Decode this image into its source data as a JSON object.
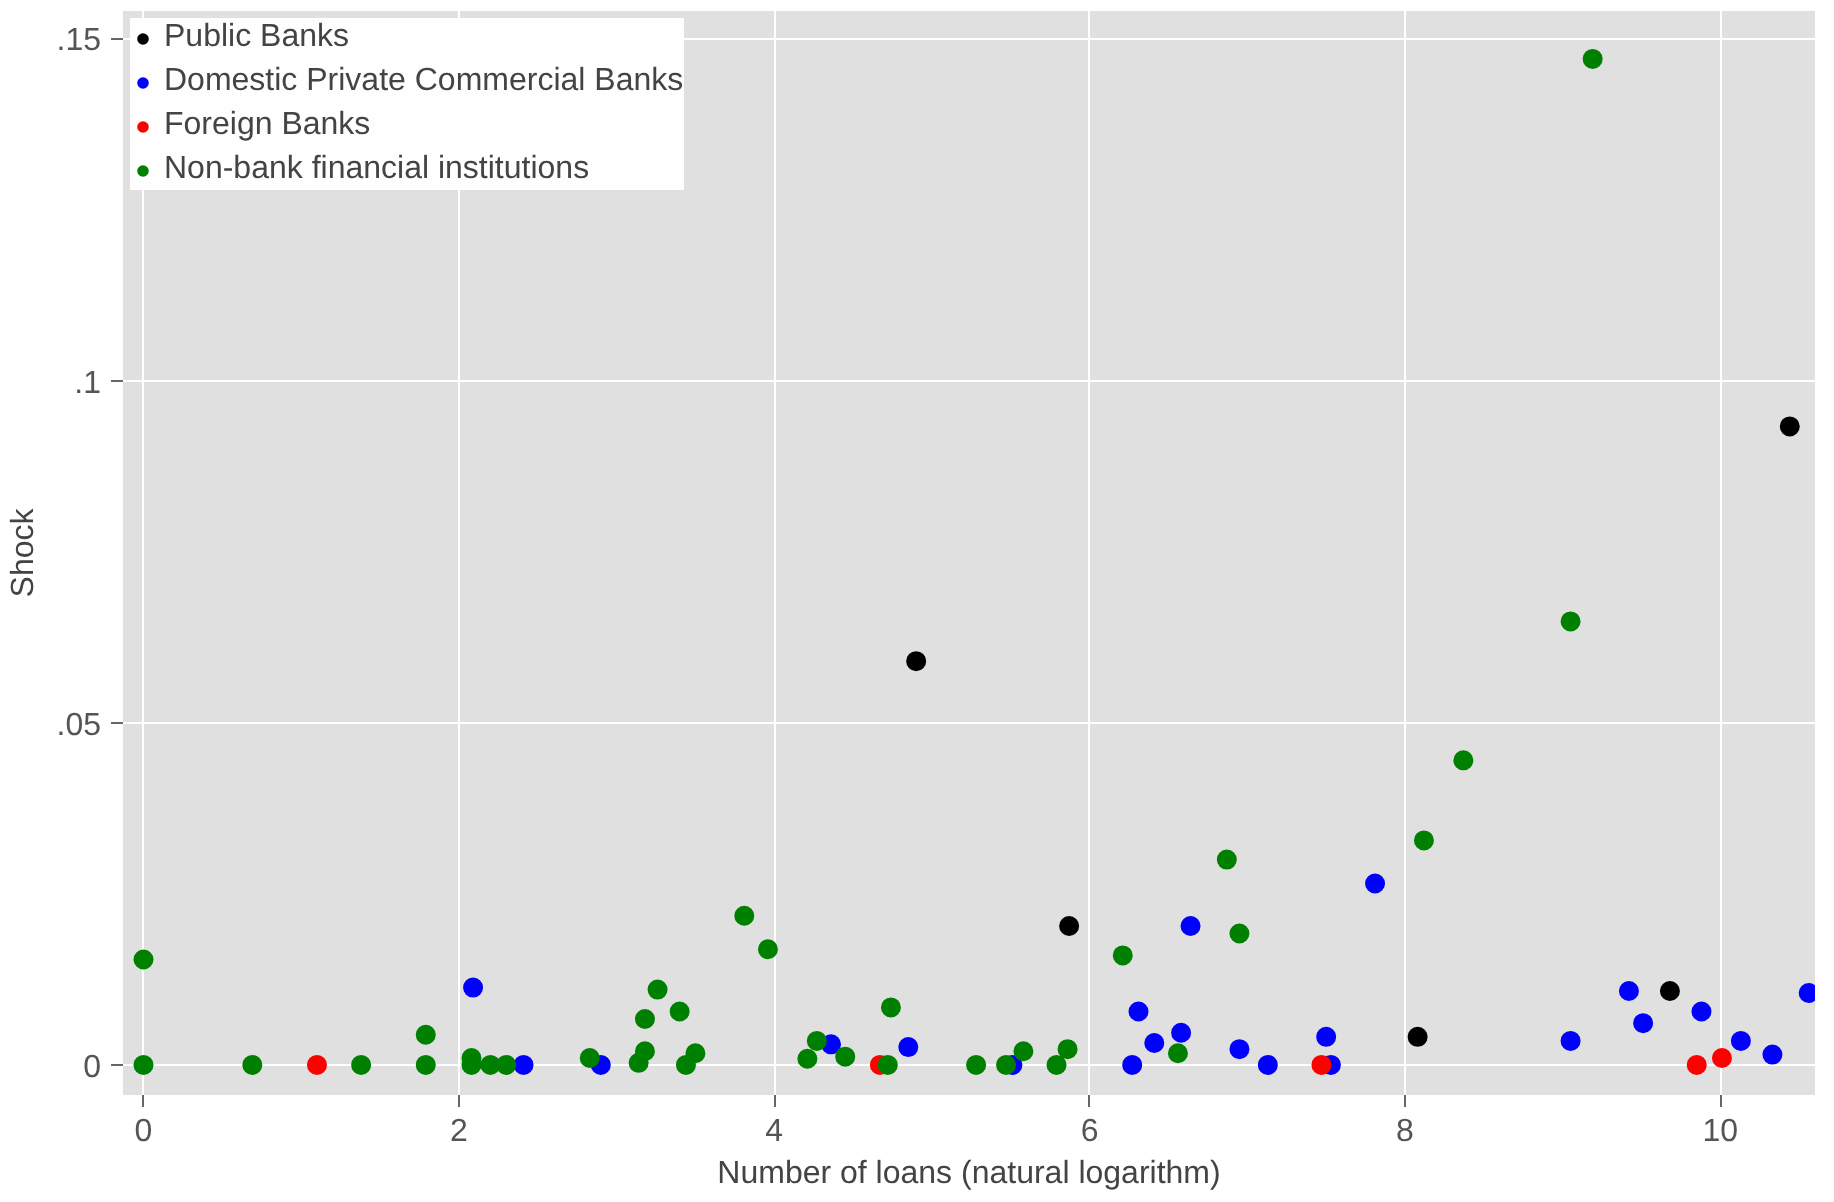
{
  "chart_data": {
    "type": "scatter",
    "xlabel": "Number of loans (natural logarithm)",
    "ylabel": "Shock",
    "xlim": [
      -0.13,
      10.6
    ],
    "ylim": [
      -0.0044,
      0.154
    ],
    "xticks": [
      0,
      2,
      4,
      6,
      8,
      10
    ],
    "yticks": [
      {
        "value": 0,
        "label": "0"
      },
      {
        "value": 0.05,
        "label": ".05"
      },
      {
        "value": 0.1,
        "label": ".1"
      },
      {
        "value": 0.15,
        "label": ".15"
      }
    ],
    "grid": true,
    "legend": "top left",
    "marker": "circle",
    "series": [
      {
        "name": "Public Banks",
        "color": "#000000",
        "x": [
          4.9,
          5.87,
          8.08,
          9.68,
          10.44
        ],
        "values": [
          0.059,
          0.0203,
          0.0041,
          0.0108,
          0.0933
        ]
      },
      {
        "name": "Domestic Private Commercial Banks",
        "color": "#0000ff",
        "x": [
          2.09,
          2.41,
          2.9,
          4.36,
          4.85,
          5.51,
          6.27,
          6.31,
          6.41,
          6.58,
          6.64,
          6.95,
          7.13,
          7.5,
          7.53,
          7.81,
          9.05,
          9.42,
          9.51,
          9.88,
          10.13,
          10.33,
          10.56
        ],
        "values": [
          0.0113,
          0,
          0,
          0.003,
          0.0026,
          0,
          0,
          0.0078,
          0.0032,
          0.0047,
          0.0203,
          0.0023,
          0,
          0.0041,
          0,
          0.0265,
          0.0035,
          0.0108,
          0.0061,
          0.0078,
          0.0035,
          0.0015,
          0.0105
        ]
      },
      {
        "name": "Foreign Banks",
        "color": "#ff0000",
        "x": [
          1.1,
          4.67,
          7.47,
          9.85,
          10.01
        ],
        "values": [
          0,
          0,
          0,
          0,
          0.001
        ]
      },
      {
        "name": "Non-bank financial institutions",
        "color": "#008000",
        "x": [
          0,
          0,
          0.69,
          1.38,
          1.79,
          1.79,
          2.08,
          2.08,
          2.2,
          2.3,
          2.83,
          3.14,
          3.18,
          3.18,
          3.26,
          3.4,
          3.44,
          3.5,
          3.81,
          3.96,
          4.21,
          4.27,
          4.45,
          4.72,
          4.74,
          5.28,
          5.47,
          5.58,
          5.79,
          5.86,
          6.21,
          6.56,
          6.87,
          6.95,
          8.12,
          8.37,
          9.05,
          9.19
        ],
        "values": [
          0.0154,
          0,
          0,
          0,
          0.0044,
          0,
          0,
          0.001,
          0,
          0,
          0.001,
          0.0003,
          0.0067,
          0.002,
          0.011,
          0.0078,
          0,
          0.0017,
          0.0218,
          0.0169,
          0.0009,
          0.0035,
          0.0012,
          0,
          0.0084,
          0,
          0,
          0.002,
          0,
          0.0023,
          0.016,
          0.0017,
          0.03,
          0.0192,
          0.0328,
          0.0445,
          0.0648,
          0.147
        ]
      }
    ]
  }
}
